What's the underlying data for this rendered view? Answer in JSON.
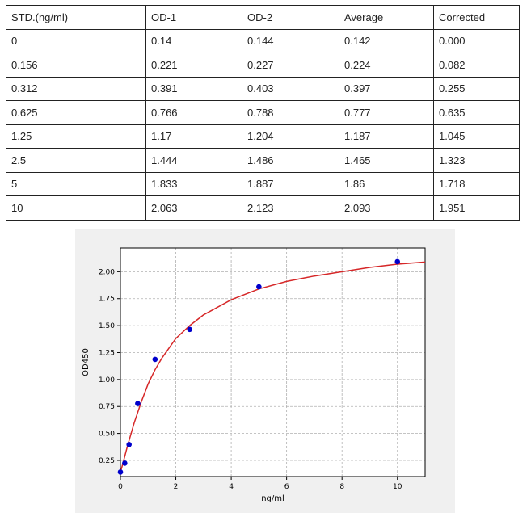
{
  "table": {
    "headers": [
      "STD.(ng/ml)",
      "OD-1",
      "OD-2",
      "Average",
      "Corrected"
    ],
    "rows": [
      [
        "0",
        "0.14",
        "0.144",
        "0.142",
        "0.000"
      ],
      [
        "0.156",
        "0.221",
        "0.227",
        "0.224",
        "0.082"
      ],
      [
        "0.312",
        "0.391",
        "0.403",
        "0.397",
        "0.255"
      ],
      [
        "0.625",
        "0.766",
        "0.788",
        "0.777",
        "0.635"
      ],
      [
        "1.25",
        "1.17",
        "1.204",
        "1.187",
        "1.045"
      ],
      [
        "2.5",
        "1.444",
        "1.486",
        "1.465",
        "1.323"
      ],
      [
        "5",
        "1.833",
        "1.887",
        "1.86",
        "1.718"
      ],
      [
        "10",
        "2.063",
        "2.123",
        "2.093",
        "1.951"
      ]
    ]
  },
  "chart_data": {
    "type": "scatter",
    "xlabel": "ng/ml",
    "ylabel": "OD450",
    "xlim": [
      0,
      11
    ],
    "ylim": [
      0.1,
      2.22
    ],
    "x_ticks": [
      0,
      2,
      4,
      6,
      8,
      10
    ],
    "y_ticks": [
      0.25,
      0.5,
      0.75,
      1.0,
      1.25,
      1.5,
      1.75,
      2.0
    ],
    "x_tick_labels": [
      "0",
      "2",
      "4",
      "6",
      "8",
      "10"
    ],
    "y_tick_labels": [
      "0.25",
      "0.50",
      "0.75",
      "1.00",
      "1.25",
      "1.50",
      "1.75",
      "2.00"
    ],
    "grid": true,
    "points": {
      "x": [
        0,
        0.156,
        0.312,
        0.625,
        1.25,
        2.5,
        5,
        10
      ],
      "y": [
        0.142,
        0.224,
        0.397,
        0.777,
        1.187,
        1.465,
        1.86,
        2.093
      ],
      "color": "#0000cc"
    },
    "fit_curve": {
      "color": "#d62728",
      "x": [
        0,
        0.1,
        0.25,
        0.5,
        0.75,
        1,
        1.25,
        1.5,
        2,
        2.5,
        3,
        4,
        5,
        6,
        7,
        8,
        9,
        10,
        11
      ],
      "y": [
        0.14,
        0.23,
        0.38,
        0.6,
        0.79,
        0.96,
        1.09,
        1.2,
        1.38,
        1.5,
        1.6,
        1.74,
        1.84,
        1.91,
        1.96,
        2.0,
        2.04,
        2.07,
        2.09
      ]
    }
  }
}
